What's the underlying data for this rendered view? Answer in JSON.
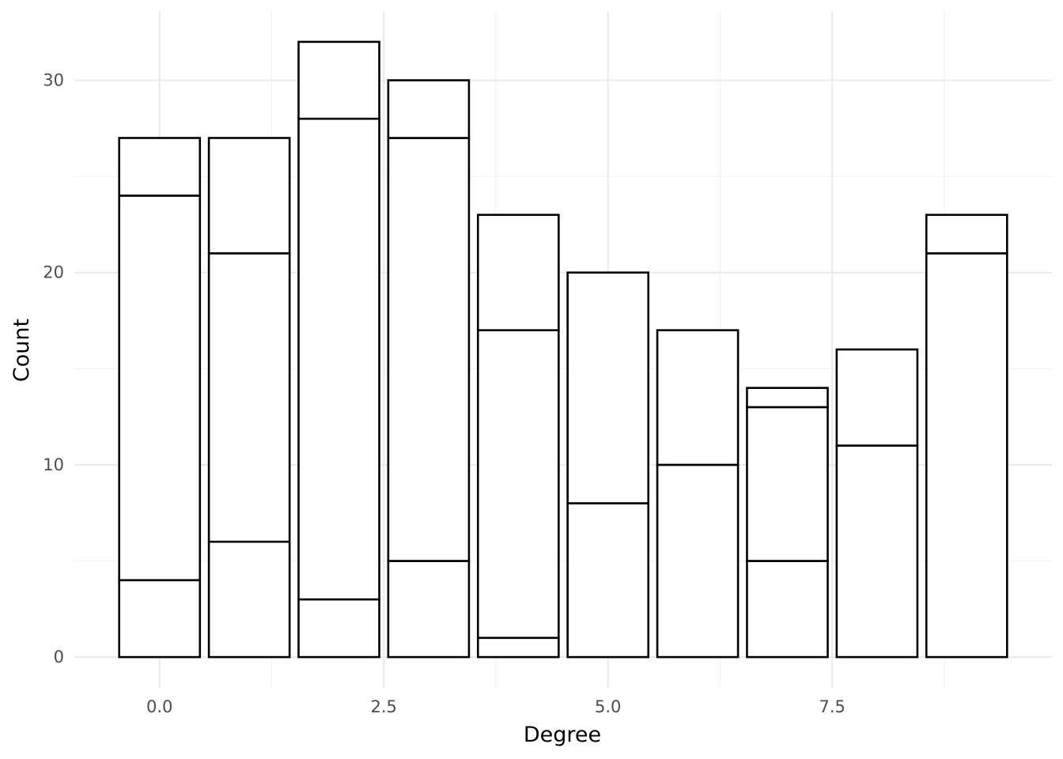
{
  "chart_data": {
    "type": "bar",
    "stacked": true,
    "xlabel": "Degree",
    "ylabel": "Count",
    "x_ticks": [
      0,
      2.5,
      5,
      7.5
    ],
    "x_tick_labels": [
      "0.0",
      "2.5",
      "5.0",
      "7.5"
    ],
    "y_ticks": [
      0,
      10,
      20,
      30
    ],
    "y_tick_labels": [
      "0",
      "10",
      "20",
      "30"
    ],
    "xlim": [
      -0.95,
      9.95
    ],
    "ylim": [
      -1.6,
      33.6
    ],
    "grid": true,
    "legend": "none",
    "fill_color": "#ffffff",
    "outline_color": "#000000",
    "bar_width": 0.9,
    "bars": [
      {
        "x": 0,
        "segments": [
          4,
          20,
          3
        ],
        "total": 27
      },
      {
        "x": 1,
        "segments": [
          6,
          15,
          6
        ],
        "total": 27
      },
      {
        "x": 2,
        "segments": [
          3,
          25,
          4
        ],
        "total": 32
      },
      {
        "x": 3,
        "segments": [
          5,
          22,
          3
        ],
        "total": 30
      },
      {
        "x": 4,
        "segments": [
          1,
          16,
          6
        ],
        "total": 23
      },
      {
        "x": 5,
        "segments": [
          8,
          12
        ],
        "total": 20
      },
      {
        "x": 6,
        "segments": [
          10,
          7
        ],
        "total": 17
      },
      {
        "x": 7,
        "segments": [
          5,
          8,
          1
        ],
        "total": 14
      },
      {
        "x": 8,
        "segments": [
          11,
          5
        ],
        "total": 16
      },
      {
        "x": 9,
        "segments": [
          21,
          2
        ],
        "total": 23
      }
    ]
  }
}
